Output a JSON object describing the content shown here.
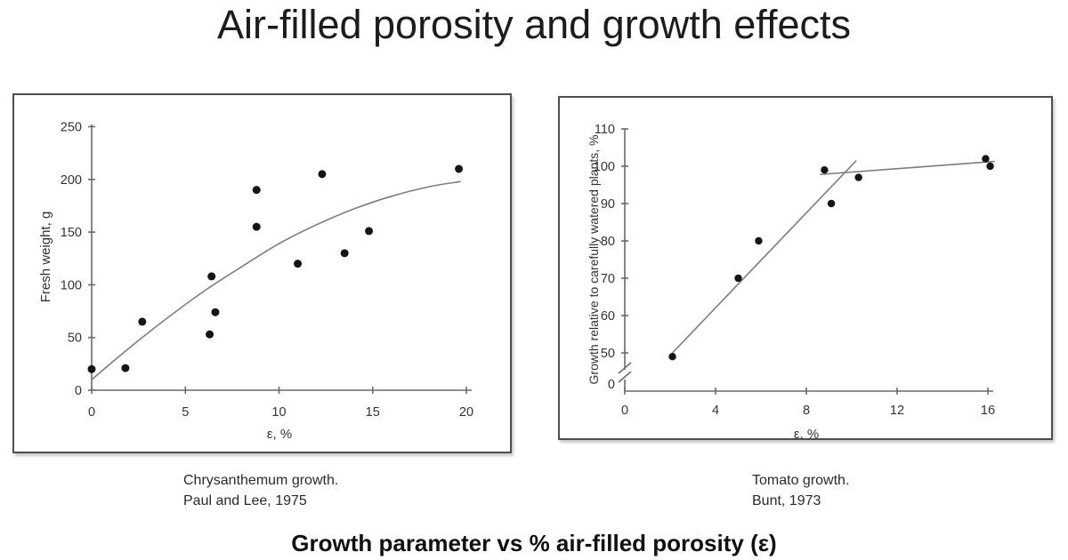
{
  "page": {
    "title": "Air-filled porosity and growth effects",
    "footer_title": "Growth parameter vs % air-filled porosity (ε)"
  },
  "chart_data": [
    {
      "type": "scatter",
      "name": "Chrysanthemum growth vs air-filled porosity",
      "xlabel": "ε, %",
      "ylabel": "Fresh weight, g",
      "xlim": [
        0,
        20
      ],
      "ylim": [
        0,
        250
      ],
      "xticks": [
        0,
        5,
        10,
        15,
        20
      ],
      "yticks": [
        0,
        50,
        100,
        150,
        200,
        250
      ],
      "grid": false,
      "legend": false,
      "points": [
        [
          0,
          20
        ],
        [
          1.8,
          21
        ],
        [
          2.7,
          65
        ],
        [
          6.3,
          53
        ],
        [
          6.4,
          108
        ],
        [
          6.6,
          74
        ],
        [
          8.8,
          155
        ],
        [
          8.8,
          190
        ],
        [
          11,
          120
        ],
        [
          12.3,
          205
        ],
        [
          13.5,
          130
        ],
        [
          14.8,
          151
        ],
        [
          19.6,
          210
        ]
      ],
      "trend_curve": [
        [
          0,
          10
        ],
        [
          2,
          40
        ],
        [
          4,
          68
        ],
        [
          6,
          94
        ],
        [
          8,
          117
        ],
        [
          10,
          139
        ],
        [
          12,
          157
        ],
        [
          14,
          172
        ],
        [
          16,
          184
        ],
        [
          18,
          193
        ],
        [
          19.7,
          198
        ]
      ],
      "caption": [
        "Chrysanthemum growth.",
        "Paul and Lee, 1975"
      ]
    },
    {
      "type": "scatter",
      "name": "Tomato growth vs air-filled porosity",
      "xlabel": "ε, %",
      "ylabel": "Growth relative to carefully watered plants, %",
      "xlim": [
        0,
        16
      ],
      "ylim": [
        0,
        110
      ],
      "y_axis_break_between": [
        0,
        50
      ],
      "xticks": [
        0,
        4,
        8,
        12,
        16
      ],
      "yticks": [
        0,
        50,
        60,
        70,
        80,
        90,
        100,
        110
      ],
      "grid": false,
      "legend": false,
      "points": [
        [
          2.1,
          49
        ],
        [
          5,
          70
        ],
        [
          5.9,
          80
        ],
        [
          8.8,
          99
        ],
        [
          9.1,
          90
        ],
        [
          10.3,
          97
        ],
        [
          15.9,
          102
        ],
        [
          16.1,
          100
        ]
      ],
      "trend_lines": [
        {
          "from": [
            2.1,
            50
          ],
          "to": [
            10.2,
            101.5
          ]
        },
        {
          "from": [
            8.6,
            97.8
          ],
          "to": [
            16.3,
            101.3
          ]
        }
      ],
      "caption": [
        "Tomato growth.",
        "Bunt, 1973"
      ]
    }
  ],
  "colors": {
    "axis": "#6b6b6b",
    "trend": "#7d7d7d",
    "point": "#151515",
    "text": "#333333"
  }
}
